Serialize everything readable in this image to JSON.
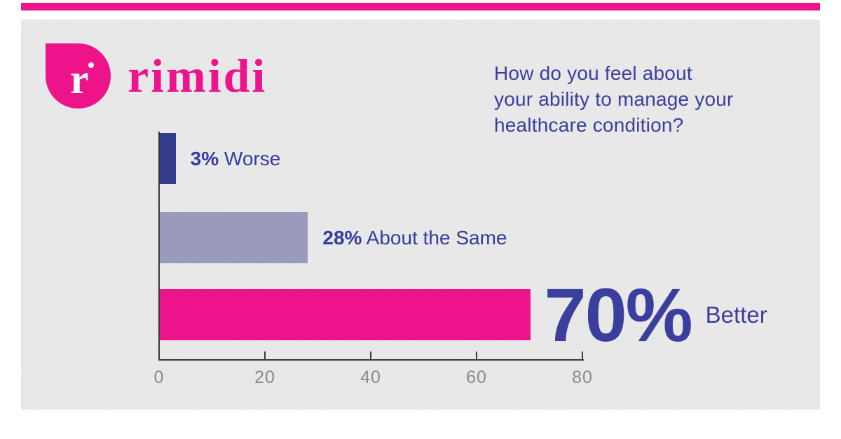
{
  "brand": {
    "name": "rimidi",
    "logo_letter": "r"
  },
  "title": {
    "line1": "How do you feel about",
    "line2": "your ability to manage your",
    "line3": "healthcare condition?"
  },
  "bars": [
    {
      "percent": "3%",
      "label": "Worse"
    },
    {
      "percent": "28%",
      "label": "About the Same"
    },
    {
      "percent": "70%",
      "label": "Better"
    }
  ],
  "chart_data": {
    "type": "bar",
    "orientation": "horizontal",
    "title": "How do you feel about your ability to manage your healthcare condition?",
    "categories": [
      "Worse",
      "About the Same",
      "Better"
    ],
    "values": [
      3,
      28,
      70
    ],
    "data_labels": [
      "3% Worse",
      "28% About the Same",
      "70% Better"
    ],
    "xlim": [
      0,
      80
    ],
    "x_ticks": [
      0,
      20,
      40,
      60,
      80
    ],
    "bar_colors": [
      "#343C8E",
      "#9A9BBC",
      "#EC138B"
    ],
    "grid": false,
    "legend": false
  },
  "colors": {
    "brand_pink": "#EC138B",
    "navy_bar": "#343C8E",
    "lavender_bar": "#9A9BBC",
    "indigo_text": "#3A3F9E",
    "axis": "#3A3A3A",
    "tick_label_gray": "#8A8A8A",
    "panel_background": "#E9E9E9",
    "canvas_background": "#FFFFFF"
  }
}
